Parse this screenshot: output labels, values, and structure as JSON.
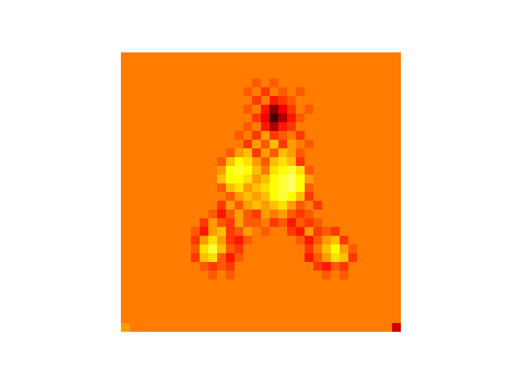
{
  "chart_data": {
    "type": "heatmap",
    "tick_labels": false,
    "clim": [
      0,
      20
    ],
    "cells": [
      [
        11,
        11,
        11,
        11,
        11,
        11,
        11,
        11,
        11,
        11,
        11,
        11,
        11,
        11,
        11,
        11,
        11,
        11,
        11,
        11,
        11,
        11,
        11,
        11,
        11,
        11,
        11,
        11,
        11,
        11,
        11,
        11
      ],
      [
        11,
        11,
        11,
        11,
        11,
        11,
        11,
        11,
        11,
        11,
        11,
        11,
        11,
        11,
        11,
        11,
        11,
        11,
        11,
        11,
        11,
        11,
        11,
        11,
        11,
        11,
        11,
        11,
        11,
        11,
        11,
        11
      ],
      [
        11,
        11,
        11,
        11,
        11,
        11,
        11,
        11,
        11,
        11,
        11,
        11,
        11,
        11,
        11,
        11,
        11,
        11,
        11,
        11,
        11,
        11,
        11,
        11,
        11,
        11,
        11,
        11,
        11,
        11,
        11,
        11
      ],
      [
        11,
        11,
        11,
        11,
        11,
        11,
        11,
        11,
        11,
        11,
        11,
        11,
        11,
        11,
        11,
        10,
        11,
        10,
        11,
        11,
        11,
        11,
        11,
        11,
        11,
        11,
        11,
        11,
        11,
        11,
        11,
        11
      ],
      [
        11,
        11,
        11,
        11,
        11,
        11,
        11,
        11,
        11,
        11,
        11,
        11,
        11,
        11,
        10,
        11,
        9,
        11,
        10,
        11,
        10,
        11,
        11,
        11,
        11,
        11,
        11,
        11,
        11,
        11,
        11,
        11
      ],
      [
        11,
        11,
        11,
        11,
        11,
        11,
        11,
        11,
        11,
        11,
        11,
        11,
        11,
        11,
        11,
        9,
        11,
        8,
        9,
        10,
        11,
        11,
        11,
        11,
        11,
        11,
        11,
        11,
        11,
        11,
        11,
        11
      ],
      [
        11,
        11,
        11,
        11,
        11,
        11,
        11,
        11,
        11,
        11,
        11,
        11,
        11,
        11,
        10,
        11,
        8,
        4,
        7,
        9,
        11,
        10,
        11,
        11,
        11,
        11,
        11,
        11,
        11,
        11,
        11,
        11
      ],
      [
        11,
        11,
        11,
        11,
        11,
        11,
        11,
        11,
        11,
        11,
        11,
        11,
        11,
        11,
        11,
        9,
        7,
        2,
        5,
        8,
        10,
        11,
        11,
        11,
        11,
        11,
        11,
        11,
        11,
        11,
        11,
        11
      ],
      [
        11,
        11,
        11,
        11,
        11,
        11,
        11,
        11,
        11,
        11,
        11,
        11,
        11,
        11,
        10,
        11,
        8,
        5,
        8,
        9,
        11,
        11,
        11,
        11,
        11,
        11,
        11,
        11,
        11,
        11,
        11,
        11
      ],
      [
        11,
        11,
        11,
        11,
        11,
        11,
        11,
        11,
        11,
        11,
        11,
        11,
        11,
        10,
        11,
        9,
        12,
        9,
        10,
        11,
        9,
        11,
        11,
        11,
        11,
        11,
        11,
        11,
        11,
        11,
        11,
        11
      ],
      [
        11,
        11,
        11,
        11,
        11,
        11,
        11,
        11,
        11,
        11,
        11,
        11,
        11,
        11,
        9,
        12,
        10,
        13,
        9,
        12,
        11,
        10,
        11,
        11,
        11,
        11,
        11,
        11,
        11,
        11,
        11,
        11
      ],
      [
        11,
        11,
        11,
        11,
        11,
        11,
        11,
        11,
        11,
        11,
        11,
        11,
        10,
        12,
        13,
        9,
        12,
        10,
        13,
        12,
        10,
        11,
        11,
        11,
        11,
        11,
        11,
        11,
        11,
        11,
        11,
        11
      ],
      [
        11,
        11,
        11,
        11,
        11,
        11,
        11,
        11,
        11,
        11,
        11,
        10,
        13,
        15,
        14,
        12,
        10,
        13,
        14,
        13,
        9,
        11,
        11,
        11,
        11,
        11,
        11,
        11,
        11,
        11,
        11,
        11
      ],
      [
        11,
        11,
        11,
        11,
        11,
        11,
        11,
        11,
        11,
        11,
        11,
        12,
        15,
        16,
        15,
        13,
        11,
        14,
        15,
        16,
        14,
        10,
        11,
        11,
        11,
        11,
        11,
        11,
        11,
        11,
        11,
        11
      ],
      [
        11,
        11,
        11,
        11,
        11,
        11,
        11,
        11,
        11,
        11,
        11,
        13,
        15,
        15,
        14,
        12,
        13,
        15,
        16,
        17,
        15,
        12,
        11,
        11,
        11,
        11,
        11,
        11,
        11,
        11,
        11,
        11
      ],
      [
        11,
        11,
        11,
        11,
        11,
        11,
        11,
        11,
        11,
        11,
        11,
        10,
        13,
        14,
        12,
        13,
        14,
        15,
        16,
        17,
        15,
        10,
        11,
        11,
        11,
        11,
        11,
        11,
        11,
        11,
        11,
        11
      ],
      [
        11,
        11,
        11,
        11,
        11,
        11,
        11,
        11,
        11,
        11,
        11,
        11,
        10,
        12,
        13,
        12,
        13,
        15,
        16,
        15,
        13,
        9,
        11,
        11,
        11,
        11,
        11,
        11,
        11,
        11,
        11,
        11
      ],
      [
        11,
        11,
        11,
        11,
        11,
        11,
        11,
        11,
        11,
        11,
        11,
        9,
        12,
        10,
        12,
        13,
        12,
        13,
        14,
        12,
        10,
        11,
        9,
        11,
        11,
        11,
        11,
        11,
        11,
        11,
        11,
        11
      ],
      [
        11,
        11,
        11,
        11,
        11,
        11,
        11,
        11,
        11,
        11,
        10,
        8,
        10,
        12,
        10,
        9,
        12,
        11,
        12,
        10,
        9,
        10,
        11,
        11,
        11,
        11,
        11,
        11,
        11,
        11,
        11,
        11
      ],
      [
        11,
        11,
        11,
        11,
        11,
        11,
        11,
        11,
        11,
        9,
        12,
        10,
        9,
        12,
        10,
        10,
        11,
        9,
        10,
        8,
        10,
        9,
        10,
        11,
        11,
        11,
        11,
        11,
        11,
        11,
        11,
        11
      ],
      [
        11,
        11,
        11,
        11,
        11,
        11,
        11,
        11,
        10,
        8,
        12,
        13,
        9,
        10,
        12,
        11,
        10,
        11,
        11,
        9,
        8,
        12,
        9,
        10,
        9,
        11,
        11,
        11,
        11,
        11,
        11,
        11
      ],
      [
        11,
        11,
        11,
        11,
        11,
        11,
        11,
        11,
        9,
        12,
        14,
        12,
        9,
        8,
        10,
        11,
        11,
        11,
        11,
        11,
        10,
        8,
        10,
        12,
        13,
        9,
        11,
        11,
        11,
        11,
        11,
        11
      ],
      [
        11,
        11,
        11,
        11,
        11,
        11,
        11,
        11,
        10,
        14,
        16,
        13,
        10,
        9,
        11,
        11,
        11,
        11,
        11,
        11,
        11,
        9,
        11,
        13,
        15,
        12,
        10,
        11,
        11,
        11,
        11,
        11
      ],
      [
        11,
        11,
        11,
        11,
        11,
        11,
        11,
        11,
        9,
        13,
        14,
        10,
        8,
        10,
        11,
        11,
        11,
        11,
        11,
        11,
        11,
        8,
        10,
        12,
        14,
        13,
        9,
        11,
        11,
        11,
        11,
        11
      ],
      [
        11,
        11,
        11,
        11,
        11,
        11,
        11,
        11,
        11,
        10,
        9,
        10,
        9,
        11,
        11,
        11,
        11,
        11,
        11,
        11,
        11,
        11,
        9,
        8,
        10,
        9,
        11,
        11,
        11,
        11,
        11,
        11
      ],
      [
        11,
        11,
        11,
        11,
        11,
        11,
        11,
        11,
        11,
        11,
        10,
        11,
        10,
        11,
        11,
        11,
        11,
        11,
        11,
        11,
        11,
        11,
        11,
        10,
        11,
        10,
        11,
        11,
        11,
        11,
        11,
        11
      ],
      [
        11,
        11,
        11,
        11,
        11,
        11,
        11,
        11,
        11,
        11,
        11,
        11,
        11,
        11,
        11,
        11,
        11,
        11,
        11,
        11,
        11,
        11,
        11,
        11,
        11,
        11,
        11,
        11,
        11,
        11,
        11,
        11
      ],
      [
        11,
        11,
        11,
        11,
        11,
        11,
        11,
        11,
        11,
        11,
        11,
        11,
        11,
        11,
        11,
        11,
        11,
        11,
        11,
        11,
        11,
        11,
        11,
        11,
        11,
        11,
        11,
        11,
        11,
        11,
        11,
        11
      ],
      [
        11,
        11,
        11,
        11,
        11,
        11,
        11,
        11,
        11,
        11,
        11,
        11,
        11,
        11,
        11,
        11,
        11,
        11,
        11,
        11,
        11,
        11,
        11,
        11,
        11,
        11,
        11,
        11,
        11,
        11,
        11,
        11
      ],
      [
        11,
        11,
        11,
        11,
        11,
        11,
        11,
        11,
        11,
        11,
        11,
        11,
        11,
        11,
        11,
        11,
        11,
        11,
        11,
        11,
        11,
        11,
        11,
        11,
        11,
        11,
        11,
        11,
        11,
        11,
        11,
        11
      ],
      [
        11,
        11,
        11,
        11,
        11,
        11,
        11,
        11,
        11,
        11,
        11,
        11,
        11,
        11,
        11,
        11,
        11,
        11,
        11,
        11,
        11,
        11,
        11,
        11,
        11,
        11,
        11,
        11,
        11,
        11,
        11,
        11
      ],
      [
        12,
        11,
        11,
        11,
        11,
        11,
        11,
        11,
        11,
        11,
        11,
        11,
        11,
        11,
        11,
        11,
        11,
        11,
        11,
        11,
        11,
        11,
        11,
        11,
        11,
        11,
        11,
        11,
        11,
        11,
        11,
        6
      ]
    ]
  }
}
